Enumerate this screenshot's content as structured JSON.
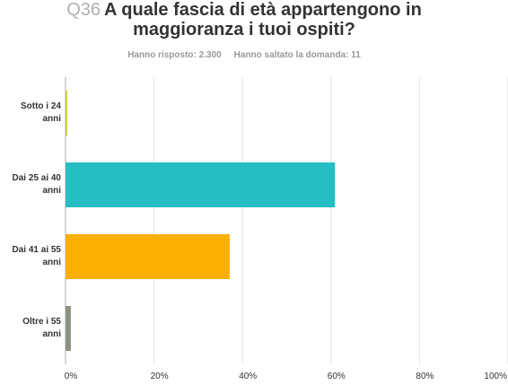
{
  "question_id": "Q36",
  "chart_data": {
    "type": "hbar",
    "title": "A quale fascia di età appartengono in maggioranza i tuoi ospiti?",
    "subtitle": [
      "Hanno risposto: 2.300",
      "Hanno saltato la domanda: 11"
    ],
    "categories": [
      "Sotto i 24 anni",
      "Dai 25 ai 40 anni",
      "Dai 41 ai 55 anni",
      "Oltre i 55 anni"
    ],
    "values": [
      0.4,
      60.9,
      37.1,
      1.2
    ],
    "colors": [
      "#cfd42c",
      "#25bec3",
      "#f9b000",
      "#8b9083"
    ],
    "xlim": [
      0,
      100
    ],
    "xticks": [
      {
        "value": 0,
        "label": "0%"
      },
      {
        "value": 20,
        "label": "20%"
      },
      {
        "value": 40,
        "label": "40%"
      },
      {
        "value": 60,
        "label": "60%"
      },
      {
        "value": 80,
        "label": "80%"
      },
      {
        "value": 100,
        "label": "100%"
      }
    ],
    "grid": true
  }
}
